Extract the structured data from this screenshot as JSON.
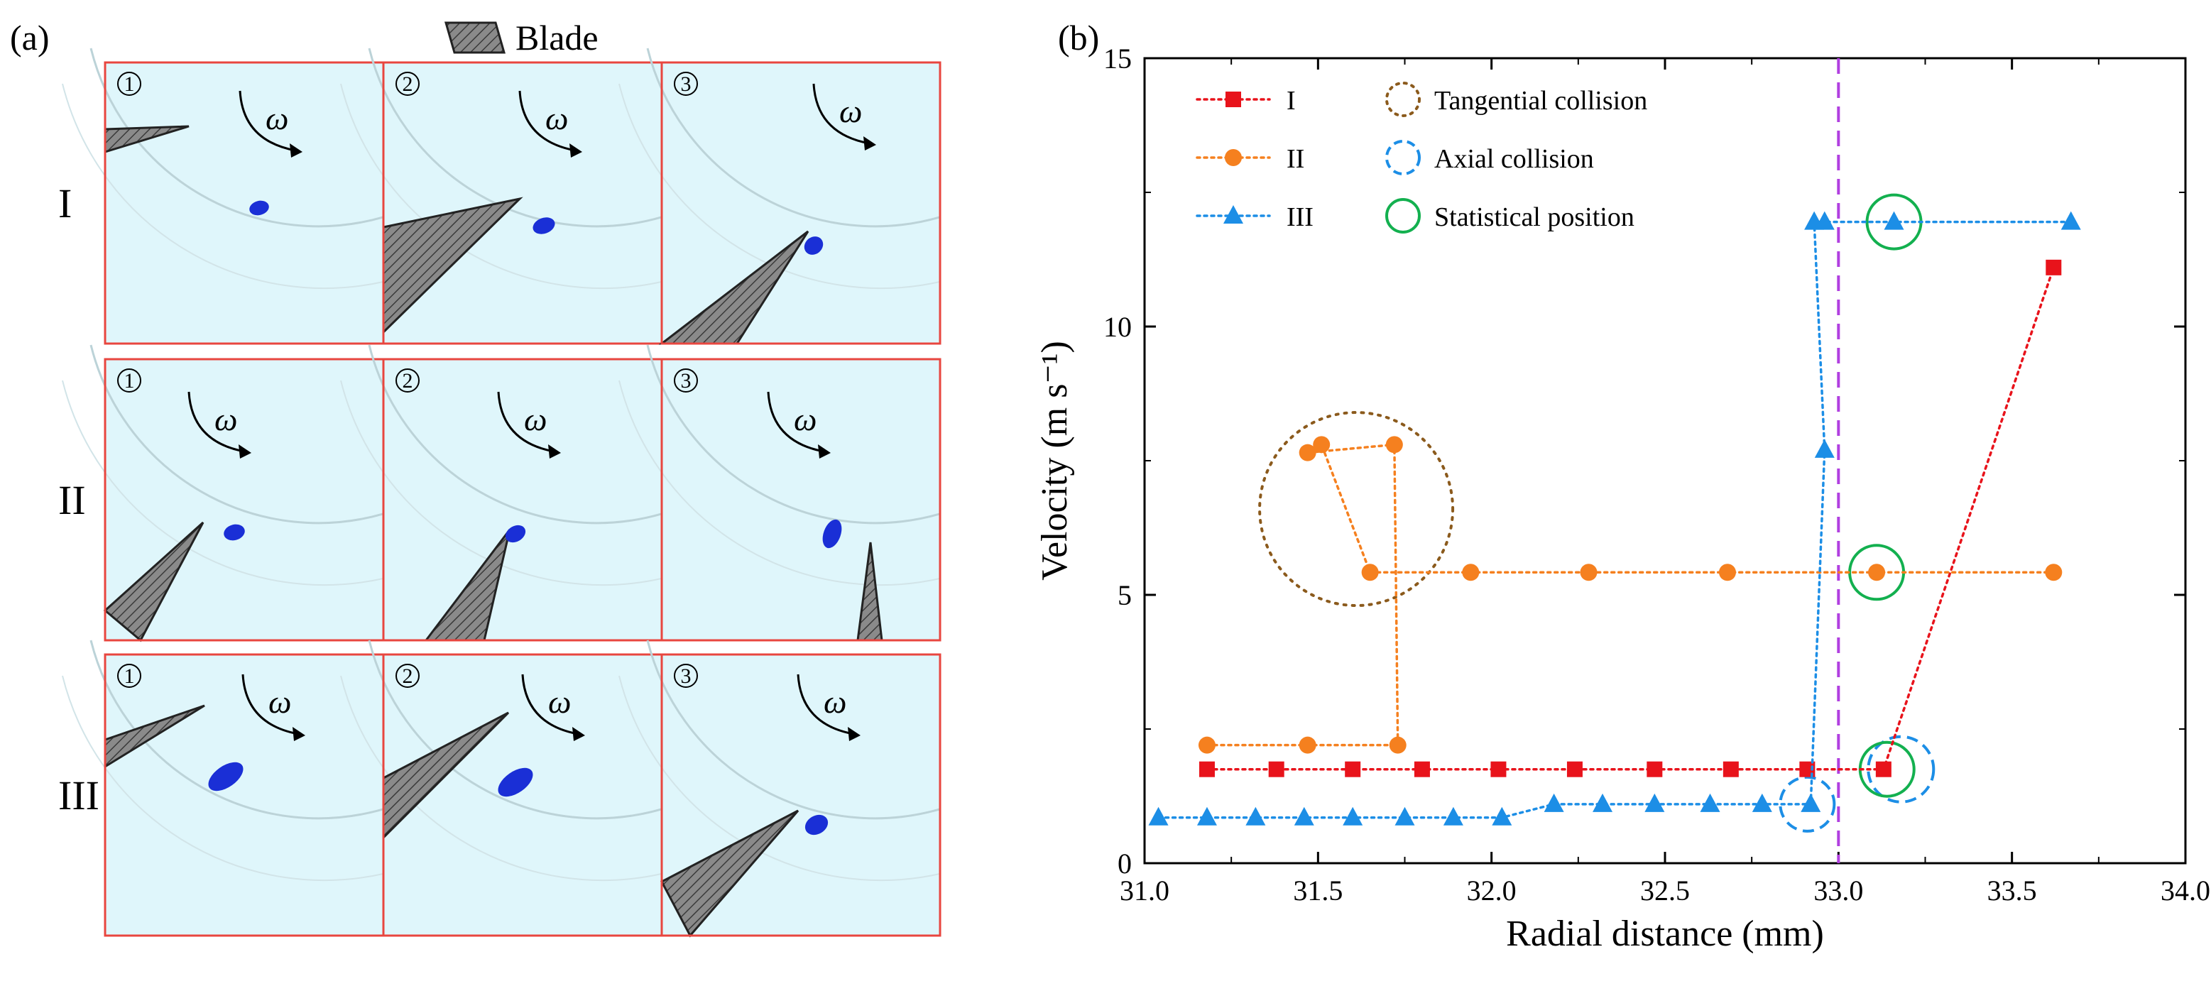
{
  "panel_a": {
    "label": "(a)",
    "legend_label": "Blade",
    "rows": [
      "I",
      "II",
      "III"
    ],
    "steps": [
      "①",
      "②",
      "③"
    ],
    "omega": "ω",
    "frame_color": "#e8463f",
    "fluid_color": "#dff6fb",
    "particle_color": "#1a2fd6",
    "blade_color": "#8a8a8a"
  },
  "chart_data": {
    "type": "line",
    "panel_label": "(b)",
    "xlabel": "Radial distance (mm)",
    "ylabel": "Velocity (m s⁻¹)",
    "xlim": [
      31.0,
      34.0
    ],
    "ylim": [
      0,
      15
    ],
    "xticks": [
      "31.0",
      "31.5",
      "32.0",
      "32.5",
      "33.0",
      "33.5",
      "34.0"
    ],
    "yticks": [
      "0",
      "5",
      "10",
      "15"
    ],
    "reference_line": {
      "x": 33.0,
      "color": "#b13fe0"
    },
    "series": [
      {
        "name": "I",
        "color": "#e8131b",
        "marker": "square",
        "x": [
          31.18,
          31.38,
          31.6,
          31.8,
          32.02,
          32.24,
          32.47,
          32.69,
          32.91,
          33.13,
          33.62
        ],
        "y": [
          1.75,
          1.75,
          1.75,
          1.75,
          1.75,
          1.75,
          1.75,
          1.75,
          1.75,
          1.75,
          11.1
        ]
      },
      {
        "name": "II",
        "color": "#f5801f",
        "marker": "circle",
        "x": [
          31.18,
          31.47,
          31.73,
          31.72,
          31.47,
          31.51,
          31.65,
          31.94,
          32.28,
          32.68,
          33.11,
          33.62
        ],
        "y": [
          2.2,
          2.2,
          2.2,
          7.8,
          7.65,
          7.8,
          5.42,
          5.42,
          5.42,
          5.42,
          5.42,
          5.42
        ]
      },
      {
        "name": "III",
        "color": "#1c8ee6",
        "marker": "triangle",
        "x": [
          31.04,
          31.18,
          31.32,
          31.46,
          31.6,
          31.75,
          31.89,
          32.03,
          32.18,
          32.32,
          32.47,
          32.63,
          32.78,
          32.92,
          32.96,
          32.93,
          32.96,
          33.16,
          33.67
        ],
        "y": [
          0.85,
          0.85,
          0.85,
          0.85,
          0.85,
          0.85,
          0.85,
          0.85,
          1.1,
          1.1,
          1.1,
          1.1,
          1.1,
          1.1,
          7.7,
          11.95,
          11.95,
          11.95,
          11.95
        ]
      }
    ],
    "markers_legend": [
      {
        "label": "Tangential collision",
        "style": "dotted",
        "color": "#8b5a1c"
      },
      {
        "label": "Axial collision",
        "style": "dashed",
        "color": "#1c8ee6"
      },
      {
        "label": "Statistical position",
        "style": "solid",
        "color": "#13b04f"
      }
    ],
    "annotation_circles": [
      {
        "type": "tangential",
        "cx": 31.61,
        "cy": 6.6
      },
      {
        "type": "axial",
        "cx": 32.91,
        "cy": 1.1
      },
      {
        "type": "axial",
        "cx": 33.18,
        "cy": 1.75
      },
      {
        "type": "statistical",
        "cx": 33.16,
        "cy": 11.95
      },
      {
        "type": "statistical",
        "cx": 33.11,
        "cy": 5.42
      },
      {
        "type": "statistical",
        "cx": 33.14,
        "cy": 1.75
      }
    ],
    "legend_position": "top-left"
  }
}
